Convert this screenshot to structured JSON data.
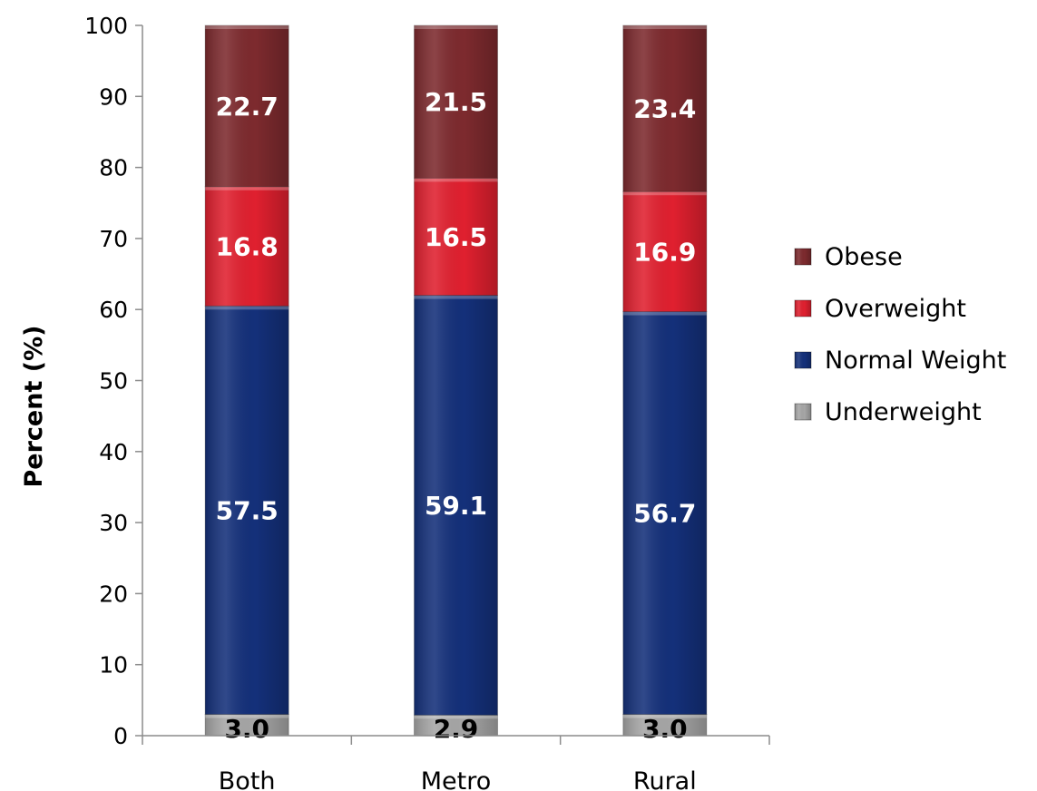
{
  "chart_data": {
    "type": "bar",
    "stacked": true,
    "categories": [
      "Both",
      "Metro",
      "Rural"
    ],
    "series": [
      {
        "name": "Underweight",
        "values": [
          3.0,
          2.9,
          3.0
        ],
        "color": "#a6a6a6",
        "label_color": "#000000"
      },
      {
        "name": "Normal Weight",
        "values": [
          57.5,
          59.1,
          56.7
        ],
        "color": "#14307a",
        "label_color": "#ffffff"
      },
      {
        "name": "Overweight",
        "values": [
          16.8,
          16.5,
          16.9
        ],
        "color": "#e0202f",
        "label_color": "#ffffff"
      },
      {
        "name": "Obese",
        "values": [
          22.7,
          21.5,
          23.4
        ],
        "color": "#7d2a2e",
        "label_color": "#ffffff"
      }
    ],
    "title": "",
    "xlabel": "",
    "ylabel": "Percent (%)",
    "ylim": [
      0,
      100
    ],
    "yticks": [
      "0",
      "10",
      "20",
      "30",
      "40",
      "50",
      "60",
      "70",
      "80",
      "90",
      "100"
    ],
    "legend_order": [
      "Obese",
      "Overweight",
      "Normal Weight",
      "Underweight"
    ],
    "legend_position": "right",
    "grid": false
  }
}
